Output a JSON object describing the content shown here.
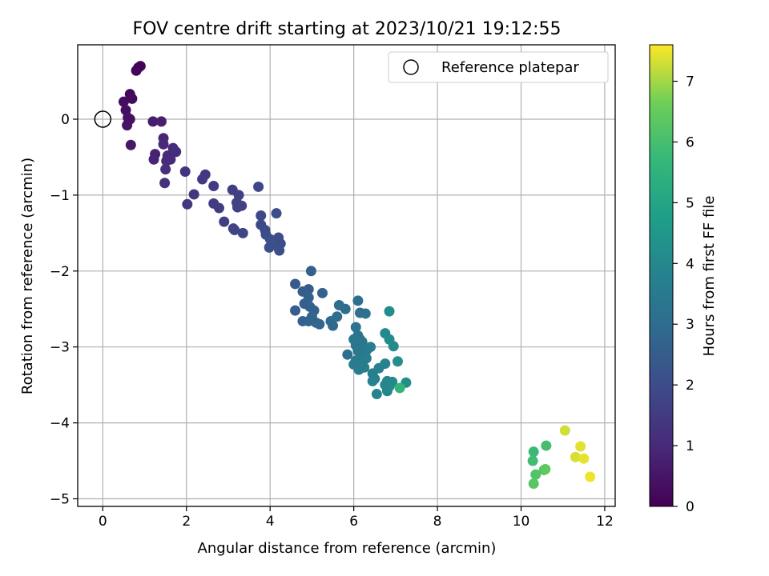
{
  "chart_data": {
    "type": "scatter",
    "title": "FOV centre drift starting at 2023/10/21 19:12:55",
    "xlabel": "Angular distance from reference (arcmin)",
    "ylabel": "Rotation from reference (arcmin)",
    "xlim": [
      -0.6,
      12.25
    ],
    "ylim": [
      -5.1,
      0.98
    ],
    "xticks": [
      0,
      2,
      4,
      6,
      8,
      10,
      12
    ],
    "xtick_labels": [
      "0",
      "2",
      "4",
      "6",
      "8",
      "10",
      "12"
    ],
    "yticks": [
      0,
      -1,
      -2,
      -3,
      -4,
      -5
    ],
    "ytick_labels": [
      "0",
      "−1",
      "−2",
      "−3",
      "−4",
      "−5"
    ],
    "grid": true,
    "legend": {
      "position": "top-right",
      "entries": [
        {
          "label": "Reference platepar",
          "marker": "open-circle"
        }
      ]
    },
    "reference_point": {
      "x": 0,
      "y": 0
    },
    "colorbar": {
      "label": "Hours from first FF file",
      "colormap": "viridis",
      "range": [
        0,
        7.6
      ],
      "ticks": [
        0,
        1,
        2,
        3,
        4,
        5,
        6,
        7
      ],
      "tick_labels": [
        "0",
        "1",
        "2",
        "3",
        "4",
        "5",
        "6",
        "7"
      ]
    },
    "points": [
      [
        0.85,
        0.68,
        0.0
      ],
      [
        0.9,
        0.7,
        0.05
      ],
      [
        0.8,
        0.64,
        0.08
      ],
      [
        0.65,
        0.33,
        0.2
      ],
      [
        0.7,
        0.27,
        0.25
      ],
      [
        0.5,
        0.23,
        0.3
      ],
      [
        0.55,
        0.12,
        0.35
      ],
      [
        0.6,
        0.02,
        0.4
      ],
      [
        0.65,
        0.0,
        0.4
      ],
      [
        0.58,
        -0.08,
        0.45
      ],
      [
        0.67,
        -0.34,
        0.5
      ],
      [
        1.2,
        -0.03,
        0.7
      ],
      [
        1.4,
        -0.03,
        0.75
      ],
      [
        1.25,
        -0.46,
        0.8
      ],
      [
        1.22,
        -0.53,
        0.85
      ],
      [
        1.45,
        -0.25,
        0.9
      ],
      [
        1.45,
        -0.33,
        0.95
      ],
      [
        1.55,
        -0.48,
        1.0
      ],
      [
        1.52,
        -0.55,
        1.0
      ],
      [
        1.62,
        -0.53,
        1.05
      ],
      [
        1.68,
        -0.38,
        1.1
      ],
      [
        1.75,
        -0.43,
        1.1
      ],
      [
        1.5,
        -0.66,
        1.15
      ],
      [
        1.48,
        -0.84,
        1.2
      ],
      [
        1.97,
        -0.69,
        1.3
      ],
      [
        2.02,
        -1.12,
        1.35
      ],
      [
        2.18,
        -0.99,
        1.4
      ],
      [
        2.38,
        -0.79,
        1.45
      ],
      [
        2.45,
        -0.73,
        1.45
      ],
      [
        2.65,
        -0.88,
        1.5
      ],
      [
        2.65,
        -1.11,
        1.5
      ],
      [
        2.78,
        -1.17,
        1.55
      ],
      [
        2.9,
        -1.35,
        1.6
      ],
      [
        3.1,
        -0.93,
        1.6
      ],
      [
        3.25,
        -1.0,
        1.65
      ],
      [
        3.2,
        -1.1,
        1.65
      ],
      [
        3.22,
        -1.16,
        1.7
      ],
      [
        3.32,
        -1.14,
        1.7
      ],
      [
        3.12,
        -1.44,
        1.75
      ],
      [
        3.15,
        -1.46,
        1.75
      ],
      [
        3.35,
        -1.5,
        1.8
      ],
      [
        3.72,
        -0.89,
        1.85
      ],
      [
        3.78,
        -1.27,
        1.9
      ],
      [
        3.78,
        -1.39,
        1.9
      ],
      [
        3.88,
        -1.46,
        1.95
      ],
      [
        3.9,
        -1.52,
        1.95
      ],
      [
        4.15,
        -1.24,
        2.0
      ],
      [
        4.2,
        -1.56,
        2.0
      ],
      [
        4.25,
        -1.64,
        2.05
      ],
      [
        4.18,
        -1.67,
        2.05
      ],
      [
        4.22,
        -1.73,
        2.1
      ],
      [
        3.98,
        -1.69,
        2.1
      ],
      [
        4.0,
        -1.58,
        2.1
      ],
      [
        4.6,
        -2.17,
        2.4
      ],
      [
        4.6,
        -2.52,
        2.5
      ],
      [
        4.78,
        -2.27,
        2.5
      ],
      [
        4.92,
        -2.24,
        2.55
      ],
      [
        4.92,
        -2.35,
        2.6
      ],
      [
        4.82,
        -2.43,
        2.6
      ],
      [
        4.95,
        -2.47,
        2.65
      ],
      [
        5.05,
        -2.52,
        2.65
      ],
      [
        4.78,
        -2.66,
        2.7
      ],
      [
        4.92,
        -2.66,
        2.7
      ],
      [
        5.0,
        -2.6,
        2.75
      ],
      [
        5.1,
        -2.68,
        2.75
      ],
      [
        5.18,
        -2.7,
        2.8
      ],
      [
        4.98,
        -2.0,
        2.6
      ],
      [
        5.25,
        -2.29,
        2.7
      ],
      [
        5.45,
        -2.66,
        2.9
      ],
      [
        5.5,
        -2.72,
        2.9
      ],
      [
        5.6,
        -2.6,
        3.0
      ],
      [
        5.65,
        -2.45,
        3.0
      ],
      [
        5.8,
        -2.5,
        3.05
      ],
      [
        5.85,
        -3.1,
        3.1
      ],
      [
        6.1,
        -2.39,
        3.1
      ],
      [
        6.15,
        -2.55,
        3.15
      ],
      [
        6.28,
        -2.56,
        3.2
      ],
      [
        6.05,
        -2.74,
        3.2
      ],
      [
        6.1,
        -2.85,
        3.3
      ],
      [
        6.15,
        -2.9,
        3.3
      ],
      [
        6.0,
        -2.9,
        3.35
      ],
      [
        6.05,
        -2.98,
        3.35
      ],
      [
        6.1,
        -3.05,
        3.4
      ],
      [
        6.2,
        -2.93,
        3.4
      ],
      [
        6.25,
        -3.0,
        3.45
      ],
      [
        6.3,
        -3.05,
        3.5
      ],
      [
        6.22,
        -3.12,
        3.5
      ],
      [
        6.05,
        -3.18,
        3.5
      ],
      [
        6.0,
        -3.23,
        3.55
      ],
      [
        6.12,
        -3.3,
        3.6
      ],
      [
        6.2,
        -3.24,
        3.6
      ],
      [
        6.25,
        -3.27,
        3.6
      ],
      [
        6.3,
        -3.15,
        3.65
      ],
      [
        6.4,
        -3.0,
        3.65
      ],
      [
        6.45,
        -3.35,
        3.7
      ],
      [
        6.5,
        -3.42,
        3.7
      ],
      [
        6.45,
        -3.45,
        3.75
      ],
      [
        6.55,
        -3.62,
        3.8
      ],
      [
        6.6,
        -3.28,
        3.8
      ],
      [
        6.75,
        -3.22,
        3.85
      ],
      [
        6.75,
        -3.5,
        3.9
      ],
      [
        6.8,
        -3.58,
        3.9
      ],
      [
        6.8,
        -3.45,
        3.95
      ],
      [
        6.85,
        -3.52,
        4.0
      ],
      [
        6.92,
        -3.46,
        4.0
      ],
      [
        6.75,
        -2.82,
        4.05
      ],
      [
        6.85,
        -2.9,
        4.1
      ],
      [
        6.95,
        -2.99,
        4.1
      ],
      [
        6.85,
        -2.53,
        4.15
      ],
      [
        7.05,
        -3.19,
        4.2
      ],
      [
        7.25,
        -3.47,
        4.25
      ],
      [
        7.1,
        -3.54,
        5.6
      ],
      [
        10.3,
        -4.38,
        5.8
      ],
      [
        10.28,
        -4.5,
        5.9
      ],
      [
        10.6,
        -4.3,
        6.0
      ],
      [
        10.55,
        -4.62,
        6.1
      ],
      [
        10.35,
        -4.68,
        6.2
      ],
      [
        10.3,
        -4.8,
        6.3
      ],
      [
        10.58,
        -4.61,
        6.4
      ],
      [
        11.05,
        -4.1,
        7.3
      ],
      [
        11.3,
        -4.45,
        7.35
      ],
      [
        11.42,
        -4.31,
        7.4
      ],
      [
        11.5,
        -4.47,
        7.45
      ],
      [
        11.65,
        -4.71,
        7.5
      ]
    ]
  }
}
